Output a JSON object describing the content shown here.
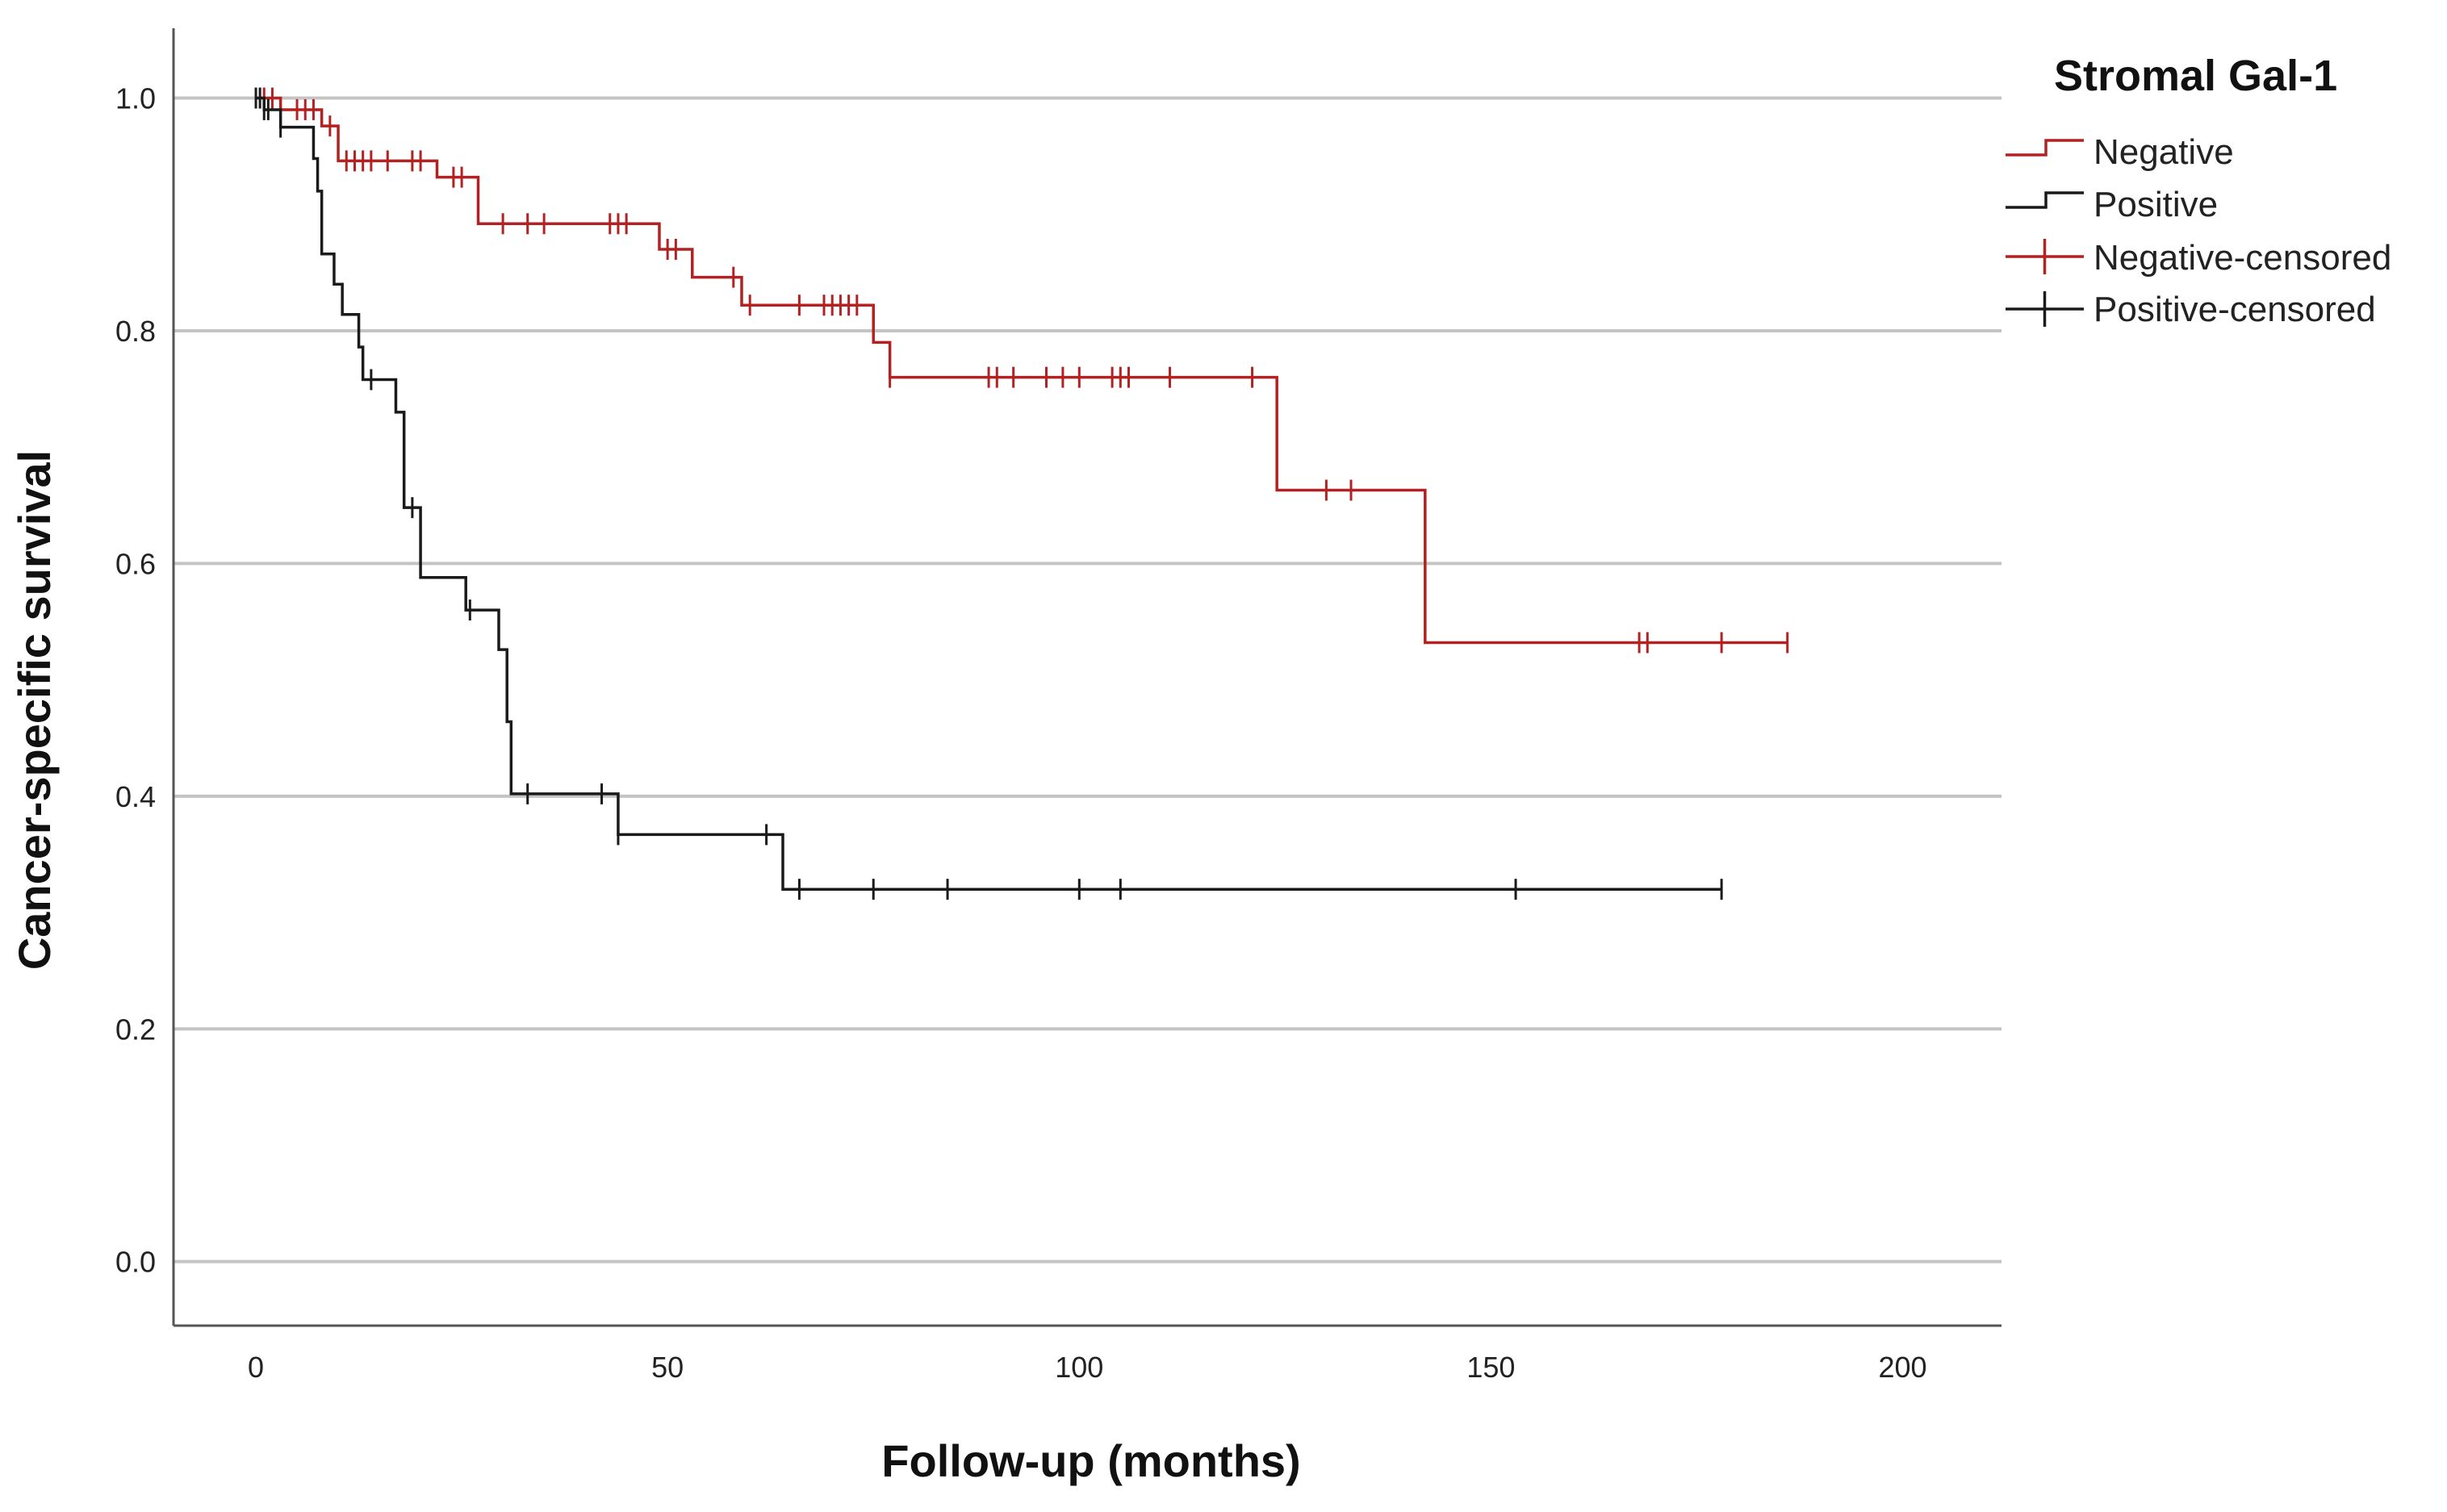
{
  "chart_data": {
    "type": "line",
    "subtype": "kaplan-meier-step",
    "xlabel": "Follow-up (months)",
    "ylabel": "Cancer-specific survival",
    "xlim": [
      -10,
      212
    ],
    "ylim": [
      -0.055,
      1.06
    ],
    "x_ticks": [
      0,
      50,
      100,
      150,
      200
    ],
    "y_ticks": [
      0.0,
      0.2,
      0.4,
      0.6,
      0.8,
      1.0
    ],
    "y_tick_labels": [
      "0.0",
      "0.2",
      "0.4",
      "0.6",
      "0.8",
      "1.0"
    ],
    "grid": "horizontal",
    "legend": {
      "title": "Stromal Gal-1",
      "position": "right",
      "entries": [
        "Negative",
        "Positive",
        "Negative-censored",
        "Positive-censored"
      ]
    },
    "series": [
      {
        "name": "Negative",
        "color": "#b22222",
        "steps": [
          [
            0,
            1.0
          ],
          [
            3,
            0.99
          ],
          [
            8,
            0.976
          ],
          [
            10,
            0.946
          ],
          [
            22,
            0.932
          ],
          [
            27,
            0.892
          ],
          [
            49,
            0.87
          ],
          [
            53,
            0.846
          ],
          [
            59,
            0.822
          ],
          [
            75,
            0.79
          ],
          [
            77,
            0.76
          ],
          [
            124,
            0.663
          ],
          [
            142,
            0.532
          ]
        ],
        "end_x": 186,
        "censored": [
          1,
          2,
          5,
          6,
          7,
          9,
          11,
          12,
          13,
          14,
          16,
          19,
          20,
          24,
          25,
          30,
          33,
          35,
          43,
          44,
          45,
          50,
          51,
          58,
          60,
          66,
          69,
          70,
          71,
          72,
          73,
          77,
          89,
          90,
          92,
          96,
          98,
          100,
          104,
          105,
          106,
          111,
          121,
          130,
          133,
          168,
          169,
          178,
          186
        ]
      },
      {
        "name": "Positive",
        "color": "#1a1a1a",
        "steps": [
          [
            0,
            1.0
          ],
          [
            1,
            0.99
          ],
          [
            3,
            0.975
          ],
          [
            7,
            0.948
          ],
          [
            7.5,
            0.92
          ],
          [
            8,
            0.866
          ],
          [
            9.5,
            0.84
          ],
          [
            10.5,
            0.814
          ],
          [
            12.5,
            0.786
          ],
          [
            13,
            0.758
          ],
          [
            17,
            0.73
          ],
          [
            18,
            0.648
          ],
          [
            20,
            0.588
          ],
          [
            25.5,
            0.56
          ],
          [
            29.5,
            0.526
          ],
          [
            30.5,
            0.464
          ],
          [
            31,
            0.402
          ],
          [
            44,
            0.367
          ],
          [
            64,
            0.32
          ]
        ],
        "end_x": 178,
        "censored": [
          0,
          0.5,
          1,
          1.5,
          3,
          14,
          19,
          26,
          33,
          42,
          44,
          62,
          66,
          75,
          84,
          100,
          105,
          153,
          178
        ]
      }
    ]
  }
}
